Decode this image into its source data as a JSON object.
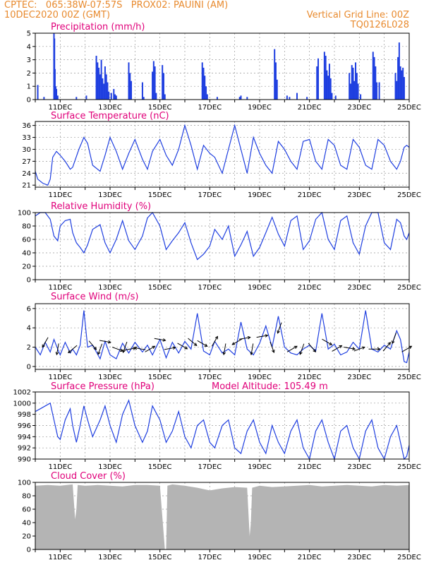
{
  "header": {
    "line1_left": "CPTEC:   065:38W-07:57S   PROX02: PAUINI (AM)",
    "line2_left": "10DEC2020 00Z (GMT)",
    "line1_right": "Vertical Grid Line: 00Z",
    "line2_right": "TQ0126L028"
  },
  "colors": {
    "header": "#e88a2e",
    "title": "#e0007a",
    "line": "#1f3fe0",
    "cloud": "#b4b4b4",
    "arrow": "#000000"
  },
  "x_tick_labels": [
    "11DEC",
    "13DEC",
    "15DEC",
    "17DEC",
    "19DEC",
    "21DEC",
    "23DEC",
    "25DEC"
  ],
  "chart_data": [
    {
      "id": "precip",
      "type": "bar",
      "title": "Precipitation (mm/h)",
      "ylim": [
        0,
        5
      ],
      "yticks": [
        0,
        1,
        2,
        3,
        4,
        5
      ],
      "grid": true,
      "x_unit": "days since 10DEC2020 00Z",
      "xlim": [
        0,
        15
      ],
      "x": [
        0.1,
        0.35,
        0.75,
        0.77,
        0.79,
        0.82,
        0.85,
        0.9,
        1.65,
        2.05,
        2.45,
        2.5,
        2.55,
        2.6,
        2.65,
        2.7,
        2.75,
        2.8,
        2.85,
        2.9,
        2.95,
        3.05,
        3.15,
        3.2,
        3.25,
        3.75,
        3.8,
        3.85,
        4.3,
        4.35,
        4.7,
        4.75,
        4.8,
        4.85,
        5.1,
        5.15,
        5.2,
        6.7,
        6.75,
        6.8,
        6.85,
        6.9,
        7.3,
        8.2,
        8.25,
        8.5,
        9.6,
        9.65,
        9.7,
        10.1,
        10.2,
        10.5,
        10.9,
        11.3,
        11.35,
        11.6,
        11.65,
        11.7,
        11.75,
        11.8,
        11.85,
        11.9,
        12.05,
        12.6,
        12.65,
        12.7,
        12.75,
        12.8,
        12.85,
        12.9,
        12.95,
        13.05,
        13.55,
        13.6,
        13.65,
        13.7,
        13.8,
        14.45,
        14.5,
        14.55,
        14.6,
        14.65,
        14.7,
        14.75,
        14.8
      ],
      "values": [
        1.1,
        0.2,
        5.0,
        4.6,
        2.3,
        1.0,
        0.8,
        0.3,
        0.2,
        0.3,
        3.3,
        2.8,
        2.4,
        1.9,
        3.0,
        1.6,
        1.2,
        2.5,
        1.9,
        1.3,
        0.6,
        0.5,
        0.8,
        0.4,
        0.3,
        2.8,
        2.0,
        1.4,
        1.3,
        0.2,
        2.1,
        2.9,
        2.5,
        0.5,
        2.6,
        2.0,
        0.4,
        2.8,
        2.4,
        1.8,
        1.0,
        0.4,
        0.2,
        0.2,
        0.3,
        0.2,
        3.8,
        2.8,
        1.5,
        0.3,
        0.2,
        0.5,
        0.2,
        2.5,
        3.1,
        3.6,
        3.3,
        2.2,
        1.8,
        2.7,
        1.6,
        0.5,
        0.3,
        2.0,
        1.2,
        2.6,
        2.4,
        1.4,
        2.8,
        2.0,
        1.2,
        0.4,
        3.6,
        3.2,
        2.5,
        1.3,
        1.3,
        2.0,
        1.4,
        3.2,
        4.3,
        2.5,
        2.2,
        2.4,
        1.7
      ]
    },
    {
      "id": "temp",
      "type": "line",
      "title": "Surface Temperature (nC)",
      "ylim": [
        20.5,
        37
      ],
      "yticks": [
        21,
        24,
        27,
        30,
        33,
        36
      ],
      "grid": true,
      "x_unit": "days since 10DEC2020 00Z",
      "xlim": [
        0,
        15
      ],
      "x": [
        0,
        0.1,
        0.3,
        0.5,
        0.6,
        0.7,
        0.85,
        1,
        1.2,
        1.4,
        1.5,
        1.75,
        1.95,
        2.1,
        2.3,
        2.6,
        2.8,
        3,
        3.25,
        3.5,
        3.75,
        4,
        4.3,
        4.5,
        4.7,
        5,
        5.25,
        5.5,
        5.75,
        6,
        6.25,
        6.5,
        6.75,
        7,
        7.2,
        7.5,
        7.75,
        8,
        8.25,
        8.5,
        8.75,
        9,
        9.25,
        9.5,
        9.75,
        10,
        10.25,
        10.5,
        10.75,
        11,
        11.25,
        11.5,
        11.75,
        12,
        12.25,
        12.5,
        12.75,
        13,
        13.25,
        13.5,
        13.75,
        14,
        14.25,
        14.5,
        14.65,
        14.8,
        14.9,
        15
      ],
      "values": [
        24.5,
        22.5,
        21.5,
        21,
        22.5,
        28,
        29.5,
        28.5,
        27,
        25,
        25.5,
        30,
        33,
        31.5,
        26,
        24.5,
        28.5,
        33,
        29.5,
        25,
        29,
        32.5,
        27.5,
        25,
        29.5,
        32.5,
        28.5,
        26,
        30,
        36,
        31,
        25,
        31,
        29,
        28,
        24,
        30,
        36,
        30,
        24,
        33,
        29,
        26,
        24,
        32,
        30,
        27,
        25,
        32,
        32.5,
        27,
        25,
        32.5,
        31,
        26,
        25,
        32.5,
        30.5,
        26,
        25,
        32.5,
        31,
        27,
        25,
        27,
        30.5,
        31,
        30.5
      ]
    },
    {
      "id": "rh",
      "type": "line",
      "title": "Relative Humidity (%)",
      "ylim": [
        0,
        100
      ],
      "yticks": [
        0,
        20,
        40,
        60,
        80,
        100
      ],
      "grid": true,
      "x_unit": "days since 10DEC2020 00Z",
      "xlim": [
        0,
        15
      ],
      "x": [
        0,
        0.2,
        0.4,
        0.6,
        0.75,
        0.9,
        1,
        1.2,
        1.4,
        1.5,
        1.65,
        1.8,
        1.95,
        2.1,
        2.3,
        2.6,
        2.8,
        3,
        3.25,
        3.5,
        3.75,
        4,
        4.3,
        4.5,
        4.7,
        5,
        5.25,
        5.5,
        5.75,
        6,
        6.25,
        6.5,
        6.75,
        7,
        7.2,
        7.5,
        7.75,
        8,
        8.25,
        8.5,
        8.75,
        9,
        9.25,
        9.5,
        9.75,
        10,
        10.25,
        10.5,
        10.75,
        11,
        11.25,
        11.5,
        11.75,
        12,
        12.25,
        12.5,
        12.75,
        13,
        13.25,
        13.5,
        13.75,
        14,
        14.25,
        14.5,
        14.65,
        14.8,
        14.9,
        15
      ],
      "values": [
        95,
        100,
        100,
        90,
        65,
        58,
        80,
        88,
        90,
        70,
        55,
        48,
        40,
        52,
        75,
        82,
        55,
        40,
        60,
        88,
        58,
        45,
        65,
        92,
        100,
        80,
        45,
        58,
        70,
        85,
        55,
        30,
        38,
        50,
        75,
        60,
        80,
        35,
        52,
        72,
        35,
        48,
        70,
        93,
        68,
        50,
        88,
        95,
        45,
        58,
        90,
        100,
        60,
        45,
        88,
        95,
        55,
        38,
        80,
        100,
        100,
        55,
        45,
        90,
        85,
        65,
        60,
        70
      ]
    },
    {
      "id": "wind",
      "type": "line",
      "title": "Surface Wind (m/s)",
      "ylim": [
        -0.3,
        6.5
      ],
      "yticks": [
        0,
        2,
        4,
        6
      ],
      "grid": true,
      "x_unit": "days since 10DEC2020 00Z",
      "xlim": [
        0,
        15
      ],
      "x": [
        0,
        0.2,
        0.4,
        0.6,
        0.75,
        0.9,
        1,
        1.2,
        1.4,
        1.5,
        1.65,
        1.8,
        1.95,
        2.1,
        2.3,
        2.6,
        2.8,
        3,
        3.25,
        3.5,
        3.75,
        4,
        4.3,
        4.5,
        4.7,
        5,
        5.25,
        5.5,
        5.75,
        6,
        6.25,
        6.5,
        6.75,
        7,
        7.2,
        7.5,
        7.75,
        8,
        8.25,
        8.5,
        8.75,
        9,
        9.25,
        9.5,
        9.75,
        10,
        10.25,
        10.5,
        10.75,
        11,
        11.25,
        11.5,
        11.75,
        12,
        12.25,
        12.5,
        12.75,
        13,
        13.25,
        13.5,
        13.75,
        14,
        14.25,
        14.5,
        14.65,
        14.8,
        14.9,
        15
      ],
      "values": [
        2,
        1.2,
        2.5,
        1.5,
        2.8,
        1.8,
        1.2,
        2.5,
        1.4,
        1.8,
        1.2,
        2.2,
        5.8,
        2,
        2.2,
        0.8,
        2.6,
        1.2,
        0.8,
        2.4,
        1.4,
        2.5,
        1.5,
        2.2,
        1.2,
        2.8,
        0.9,
        2.5,
        1.4,
        2.6,
        1.8,
        5.5,
        1.6,
        1.2,
        2.6,
        1.4,
        1.8,
        1.2,
        4.6,
        1.8,
        1.2,
        2.4,
        4.2,
        2,
        5.2,
        2,
        1.4,
        1.2,
        1.8,
        2.2,
        1.6,
        5.5,
        1.8,
        2.3,
        1.2,
        1.5,
        2.5,
        1.8,
        5.8,
        1.8,
        1.5,
        2.2,
        1.8,
        3.7,
        2.8,
        0.5,
        0.4,
        1.5
      ],
      "arrows": [
        {
          "x": 0.4,
          "dir_deg": 210
        },
        {
          "x": 0.9,
          "dir_deg": 190
        },
        {
          "x": 1.5,
          "dir_deg": 230
        },
        {
          "x": 2.3,
          "dir_deg": 140
        },
        {
          "x": 2.6,
          "dir_deg": 200
        },
        {
          "x": 2.8,
          "dir_deg": 100
        },
        {
          "x": 3.3,
          "dir_deg": 110
        },
        {
          "x": 3.6,
          "dir_deg": 200
        },
        {
          "x": 3.8,
          "dir_deg": 80
        },
        {
          "x": 4.2,
          "dir_deg": 280
        },
        {
          "x": 4.6,
          "dir_deg": 60
        },
        {
          "x": 5.0,
          "dir_deg": 100
        },
        {
          "x": 5.4,
          "dir_deg": 80
        },
        {
          "x": 5.9,
          "dir_deg": 120
        },
        {
          "x": 6.3,
          "dir_deg": 130
        },
        {
          "x": 6.7,
          "dir_deg": 120
        },
        {
          "x": 7.2,
          "dir_deg": 30
        },
        {
          "x": 7.6,
          "dir_deg": 190
        },
        {
          "x": 8.1,
          "dir_deg": 240
        },
        {
          "x": 8.4,
          "dir_deg": 80
        },
        {
          "x": 8.7,
          "dir_deg": 190
        },
        {
          "x": 9.1,
          "dir_deg": 80
        },
        {
          "x": 9.5,
          "dir_deg": 160
        },
        {
          "x": 9.8,
          "dir_deg": 200
        },
        {
          "x": 10.3,
          "dir_deg": 60
        },
        {
          "x": 10.7,
          "dir_deg": 200
        },
        {
          "x": 11.1,
          "dir_deg": 140
        },
        {
          "x": 11.7,
          "dir_deg": 120
        },
        {
          "x": 12.1,
          "dir_deg": 60
        },
        {
          "x": 12.6,
          "dir_deg": 100
        },
        {
          "x": 13.0,
          "dir_deg": 70
        },
        {
          "x": 13.6,
          "dir_deg": 90
        },
        {
          "x": 14.1,
          "dir_deg": 40
        },
        {
          "x": 14.4,
          "dir_deg": 200
        },
        {
          "x": 14.9,
          "dir_deg": 60
        }
      ]
    },
    {
      "id": "press",
      "type": "line",
      "title": "Surface Pressure (hPa)",
      "annotation": "Model Altitude: 105.49 m",
      "ylim": [
        990,
        1002
      ],
      "yticks": [
        990,
        992,
        994,
        996,
        998,
        1000,
        1002
      ],
      "grid": true,
      "x_unit": "days since 10DEC2020 00Z",
      "xlim": [
        0,
        15
      ],
      "x": [
        0,
        0.2,
        0.4,
        0.6,
        0.75,
        0.9,
        1,
        1.2,
        1.4,
        1.5,
        1.65,
        1.8,
        1.95,
        2.1,
        2.3,
        2.6,
        2.8,
        3,
        3.25,
        3.5,
        3.75,
        4,
        4.3,
        4.5,
        4.7,
        5,
        5.25,
        5.5,
        5.75,
        6,
        6.25,
        6.5,
        6.75,
        7,
        7.2,
        7.5,
        7.75,
        8,
        8.25,
        8.5,
        8.75,
        9,
        9.25,
        9.5,
        9.75,
        10,
        10.25,
        10.5,
        10.75,
        11,
        11.25,
        11.5,
        11.75,
        12,
        12.25,
        12.5,
        12.75,
        13,
        13.25,
        13.5,
        13.75,
        14,
        14.25,
        14.5,
        14.65,
        14.8,
        14.9,
        15
      ],
      "values": [
        998.5,
        999,
        999.5,
        1000,
        997,
        994,
        993.5,
        997,
        999,
        996,
        993,
        996,
        999.5,
        997,
        994,
        997,
        999.5,
        996,
        993,
        998,
        1000.5,
        996,
        993,
        995,
        999.5,
        997,
        993,
        995,
        998.5,
        994,
        992,
        996,
        997,
        993,
        992,
        996,
        997,
        992,
        991,
        995,
        997,
        993,
        991,
        996,
        993,
        991,
        995,
        997,
        992,
        990,
        995,
        997,
        993,
        990,
        995,
        996,
        992,
        990,
        995,
        997,
        992,
        990,
        994,
        996,
        993,
        990,
        990.5,
        992.5
      ]
    },
    {
      "id": "cloud",
      "type": "area",
      "title": "Cloud Cover (%)",
      "ylim": [
        0,
        100
      ],
      "yticks": [
        0,
        20,
        40,
        60,
        80,
        100
      ],
      "grid": true,
      "x_unit": "days since 10DEC2020 00Z",
      "xlim": [
        0,
        15
      ],
      "x": [
        0,
        0.5,
        1,
        1.5,
        1.6,
        1.65,
        1.7,
        2,
        2.5,
        3,
        3.5,
        4,
        4.5,
        5,
        5.2,
        5.25,
        5.3,
        5.5,
        6,
        6.5,
        7,
        7.5,
        8,
        8.5,
        8.6,
        8.65,
        8.7,
        9,
        9.5,
        10,
        10.5,
        11,
        11.5,
        12,
        12.5,
        13,
        13.5,
        14,
        14.5,
        15
      ],
      "values": [
        95,
        96,
        95,
        97,
        45,
        60,
        96,
        95,
        96,
        95,
        94,
        96,
        96,
        95,
        0,
        0,
        95,
        97,
        95,
        92,
        88,
        91,
        93,
        92,
        20,
        40,
        92,
        95,
        93,
        94,
        95,
        96,
        94,
        95,
        96,
        95,
        94,
        96,
        95,
        96
      ]
    }
  ]
}
